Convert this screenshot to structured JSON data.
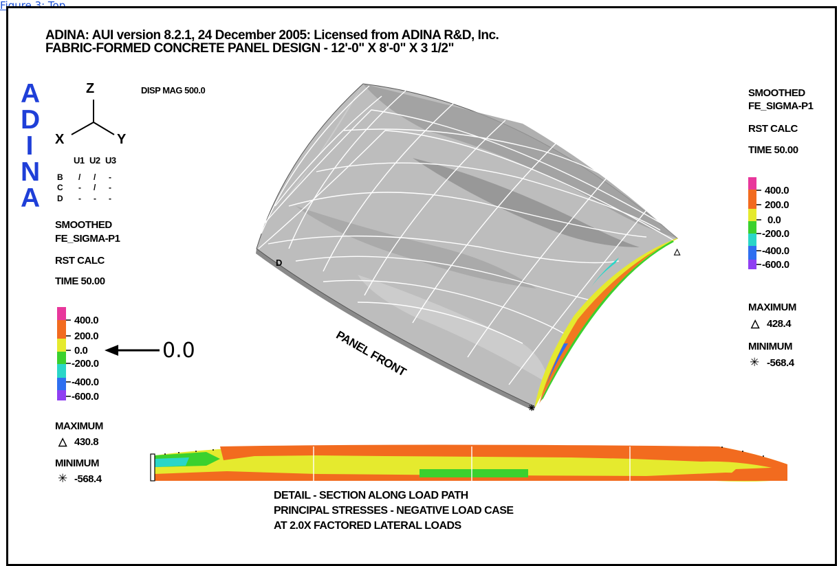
{
  "link_text": "Figure 3: Top",
  "header": {
    "line1": "ADINA: AUI version 8.2.1, 24 December 2005: Licensed from ADINA R&D, Inc.",
    "line2": "FABRIC-FORMED CONCRETE PANEL DESIGN - 12'-0\" X 8'-0\" X 3 1/2\""
  },
  "logo": [
    "A",
    "D",
    "I",
    "N",
    "A"
  ],
  "axes": {
    "z": "Z",
    "x": "X",
    "y": "Y"
  },
  "bc_table": {
    "headers": [
      "U1",
      "U2",
      "U3"
    ],
    "rows": [
      {
        "label": "B",
        "cells": [
          "/",
          "/",
          "-"
        ]
      },
      {
        "label": "C",
        "cells": [
          "-",
          "/",
          "-"
        ]
      },
      {
        "label": "D",
        "cells": [
          "-",
          "-",
          "-"
        ]
      }
    ]
  },
  "disp_mag": "DISP MAG 500.0",
  "left_legend": {
    "smoothed": "SMOOTHED",
    "variable": "FE_SIGMA-P1",
    "calc": "RST CALC",
    "time": "TIME 50.00",
    "ticks": [
      "400.0",
      "200.0",
      "0.0",
      "-200.0",
      "-400.0",
      "-600.0"
    ],
    "callout": "0.0",
    "maximum_label": "MAXIMUM",
    "maximum_value": "430.8",
    "minimum_label": "MINIMUM",
    "minimum_value": "-568.4"
  },
  "right_legend": {
    "smoothed": "SMOOTHED",
    "variable": "FE_SIGMA-P1",
    "calc": "RST CALC",
    "time": "TIME 50.00",
    "ticks": [
      "400.0",
      "200.0",
      "0.0",
      "-200.0",
      "-400.0",
      "-600.0"
    ],
    "maximum_label": "MAXIMUM",
    "maximum_value": "428.4",
    "minimum_label": "MINIMUM",
    "minimum_value": "-568.4"
  },
  "panel": {
    "label_front": "PANEL FRONT",
    "node_d": "D"
  },
  "colors": {
    "logo": "#1f3fd8",
    "pink": "#e8379b",
    "orange": "#f26b1f",
    "yellow": "#e5ea2e",
    "green": "#3bd12e",
    "cyan": "#2ad6c8",
    "blue": "#2f6ff0",
    "purple": "#8f3ff2"
  },
  "caption": {
    "line1": "DETAIL - SECTION ALONG LOAD PATH",
    "line2": "PRINCIPAL STRESSES - NEGATIVE LOAD CASE",
    "line3": "AT 2.0X FACTORED LATERAL LOADS"
  }
}
